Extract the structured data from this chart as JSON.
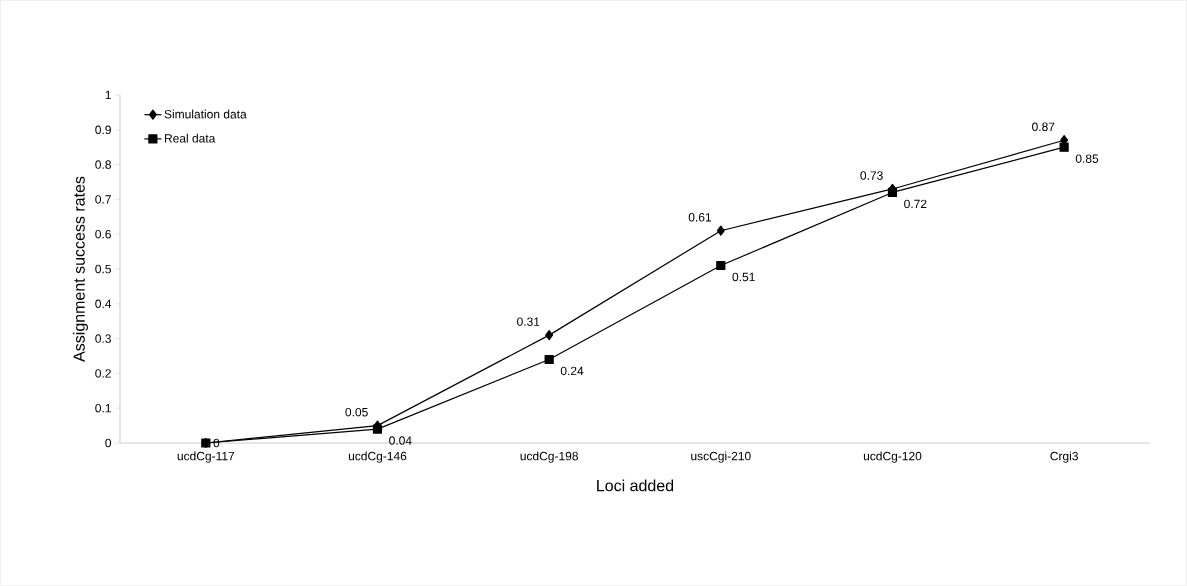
{
  "chart_data": {
    "type": "line",
    "xlabel": "Loci added",
    "ylabel": "Assignment success rates",
    "categories": [
      "ucdCg-117",
      "ucdCg-146",
      "ucdCg-198",
      "uscCgi-210",
      "ucdCg-120",
      "Crgi3"
    ],
    "series": [
      {
        "name": "Simulation data",
        "color": "#000000",
        "marker": "diamond",
        "values": [
          0,
          0.05,
          0.31,
          0.61,
          0.73,
          0.87
        ],
        "value_labels": [
          null,
          "0.05",
          "0.31",
          "0.61",
          "0.73",
          "0.87"
        ]
      },
      {
        "name": "Real data",
        "color": "#000000",
        "marker": "square",
        "values": [
          0,
          0.04,
          0.24,
          0.51,
          0.72,
          0.85
        ],
        "value_labels": [
          "0",
          "0.04",
          "0.24",
          "0.51",
          "0.72",
          "0.85"
        ]
      }
    ],
    "ylim": [
      0,
      1
    ],
    "yticks": [
      0,
      0.1,
      0.2,
      0.3,
      0.4,
      0.5,
      0.6,
      0.7,
      0.8,
      0.9,
      1
    ],
    "legend": "top left",
    "grid": false,
    "line_style": "solid"
  }
}
